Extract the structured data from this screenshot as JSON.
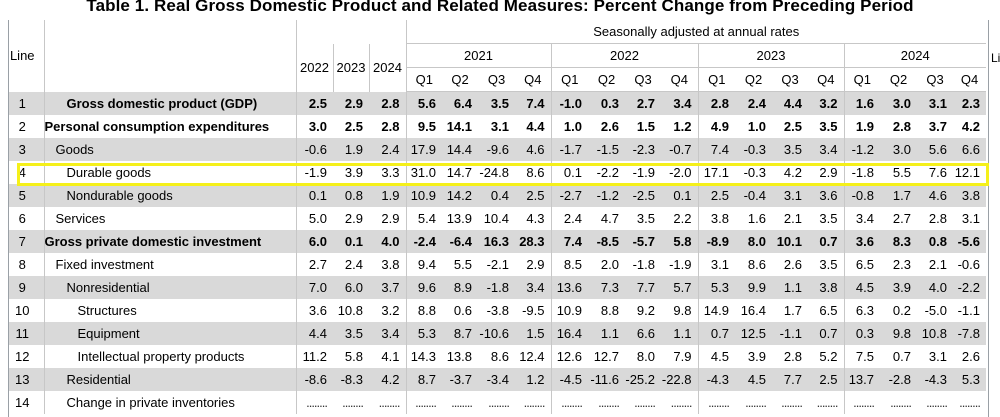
{
  "title": "Table 1. Real Gross Domestic Product and Related Measures: Percent Change from Preceding Period",
  "header": {
    "line_label": "Line",
    "seasonal_note": "Seasonally adjusted at annual rates",
    "annual_years": [
      "2022",
      "2023",
      "2024"
    ],
    "quarter_years": [
      "2021",
      "2022",
      "2023",
      "2024"
    ],
    "quarters": [
      "Q1",
      "Q2",
      "Q3",
      "Q4",
      "Q1",
      "Q2",
      "Q3",
      "Q4",
      "Q1",
      "Q2",
      "Q3",
      "Q4",
      "Q1",
      "Q2",
      "Q3",
      "Q4"
    ],
    "cut_off_label": "Li"
  },
  "rows": [
    {
      "line": "1",
      "label": "Gross domestic product (GDP)",
      "indent": 2,
      "bold": true,
      "shade": true,
      "values": [
        "2.5",
        "2.9",
        "2.8",
        "5.6",
        "6.4",
        "3.5",
        "7.4",
        "-1.0",
        "0.3",
        "2.7",
        "3.4",
        "2.8",
        "2.4",
        "4.4",
        "3.2",
        "1.6",
        "3.0",
        "3.1",
        "2.3"
      ]
    },
    {
      "line": "2",
      "label": "Personal consumption expenditures",
      "indent": 0,
      "bold": true,
      "shade": false,
      "values": [
        "3.0",
        "2.5",
        "2.8",
        "9.5",
        "14.1",
        "3.1",
        "4.4",
        "1.0",
        "2.6",
        "1.5",
        "1.2",
        "4.9",
        "1.0",
        "2.5",
        "3.5",
        "1.9",
        "2.8",
        "3.7",
        "4.2"
      ]
    },
    {
      "line": "3",
      "label": "Goods",
      "indent": 1,
      "bold": false,
      "shade": true,
      "values": [
        "-0.6",
        "1.9",
        "2.4",
        "17.9",
        "14.4",
        "-9.6",
        "4.6",
        "-1.7",
        "-1.5",
        "-2.3",
        "-0.7",
        "7.4",
        "-0.3",
        "3.5",
        "3.4",
        "-1.2",
        "3.0",
        "5.6",
        "6.6"
      ]
    },
    {
      "line": "4",
      "label": "Durable goods",
      "indent": 2,
      "bold": false,
      "shade": false,
      "values": [
        "-1.9",
        "3.9",
        "3.3",
        "31.0",
        "14.7",
        "-24.8",
        "8.6",
        "0.1",
        "-2.2",
        "-1.9",
        "-2.0",
        "17.1",
        "-0.3",
        "4.2",
        "2.9",
        "-1.8",
        "5.5",
        "7.6",
        "12.1"
      ]
    },
    {
      "line": "5",
      "label": "Nondurable goods",
      "indent": 2,
      "bold": false,
      "shade": true,
      "values": [
        "0.1",
        "0.8",
        "1.9",
        "10.9",
        "14.2",
        "0.4",
        "2.5",
        "-2.7",
        "-1.2",
        "-2.5",
        "0.1",
        "2.5",
        "-0.4",
        "3.1",
        "3.6",
        "-0.8",
        "1.7",
        "4.6",
        "3.8"
      ]
    },
    {
      "line": "6",
      "label": "Services",
      "indent": 1,
      "bold": false,
      "shade": false,
      "values": [
        "5.0",
        "2.9",
        "2.9",
        "5.4",
        "13.9",
        "10.4",
        "4.3",
        "2.4",
        "4.7",
        "3.5",
        "2.2",
        "3.8",
        "1.6",
        "2.1",
        "3.5",
        "3.4",
        "2.7",
        "2.8",
        "3.1"
      ]
    },
    {
      "line": "7",
      "label": "Gross private domestic investment",
      "indent": 0,
      "bold": true,
      "shade": true,
      "values": [
        "6.0",
        "0.1",
        "4.0",
        "-2.4",
        "-6.4",
        "16.3",
        "28.3",
        "7.4",
        "-8.5",
        "-5.7",
        "5.8",
        "-8.9",
        "8.0",
        "10.1",
        "0.7",
        "3.6",
        "8.3",
        "0.8",
        "-5.6"
      ]
    },
    {
      "line": "8",
      "label": "Fixed investment",
      "indent": 1,
      "bold": false,
      "shade": false,
      "values": [
        "2.7",
        "2.4",
        "3.8",
        "9.4",
        "5.5",
        "-2.1",
        "2.9",
        "8.5",
        "2.0",
        "-1.8",
        "-1.9",
        "3.1",
        "8.6",
        "2.6",
        "3.5",
        "6.5",
        "2.3",
        "2.1",
        "-0.6"
      ]
    },
    {
      "line": "9",
      "label": "Nonresidential",
      "indent": 2,
      "bold": false,
      "shade": true,
      "values": [
        "7.0",
        "6.0",
        "3.7",
        "9.6",
        "8.9",
        "-1.8",
        "3.4",
        "13.6",
        "7.3",
        "7.7",
        "5.7",
        "5.3",
        "9.9",
        "1.1",
        "3.8",
        "4.5",
        "3.9",
        "4.0",
        "-2.2"
      ]
    },
    {
      "line": "10",
      "label": "Structures",
      "indent": 3,
      "bold": false,
      "shade": false,
      "values": [
        "3.6",
        "10.8",
        "3.2",
        "8.8",
        "0.6",
        "-3.8",
        "-9.5",
        "10.9",
        "8.8",
        "9.2",
        "9.8",
        "14.9",
        "16.4",
        "1.7",
        "6.5",
        "6.3",
        "0.2",
        "-5.0",
        "-1.1"
      ]
    },
    {
      "line": "11",
      "label": "Equipment",
      "indent": 3,
      "bold": false,
      "shade": true,
      "values": [
        "4.4",
        "3.5",
        "3.4",
        "5.3",
        "8.7",
        "-10.6",
        "1.5",
        "16.4",
        "1.1",
        "6.6",
        "1.1",
        "0.7",
        "12.5",
        "-1.1",
        "0.7",
        "0.3",
        "9.8",
        "10.8",
        "-7.8"
      ]
    },
    {
      "line": "12",
      "label": "Intellectual property products",
      "indent": 3,
      "bold": false,
      "shade": false,
      "values": [
        "11.2",
        "5.8",
        "4.1",
        "14.3",
        "13.8",
        "8.6",
        "12.4",
        "12.6",
        "12.7",
        "8.0",
        "7.9",
        "4.5",
        "3.9",
        "2.8",
        "5.2",
        "7.5",
        "0.7",
        "3.1",
        "2.6"
      ]
    },
    {
      "line": "13",
      "label": "Residential",
      "indent": 2,
      "bold": false,
      "shade": true,
      "values": [
        "-8.6",
        "-8.3",
        "4.2",
        "8.7",
        "-3.7",
        "-3.4",
        "1.2",
        "-4.5",
        "-11.6",
        "-25.2",
        "-22.8",
        "-4.3",
        "4.5",
        "7.7",
        "2.5",
        "13.7",
        "-2.8",
        "-4.3",
        "5.3"
      ]
    },
    {
      "line": "14",
      "label": "Change in private inventories",
      "indent": 2,
      "bold": false,
      "shade": false,
      "values": [
        "........",
        "........",
        "........",
        "........",
        "........",
        "........",
        "........",
        "........",
        "........",
        "........",
        "........",
        "........",
        "........",
        "........",
        "........",
        "........",
        "........",
        "........",
        "........"
      ]
    }
  ]
}
